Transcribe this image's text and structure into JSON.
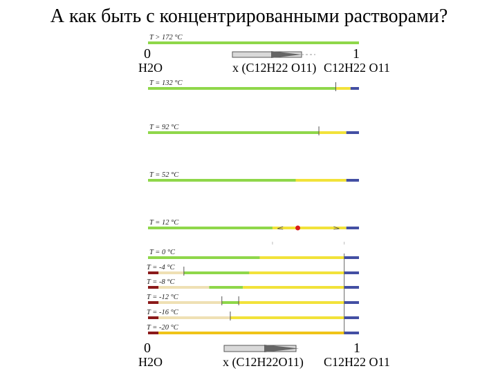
{
  "title": "А как быть с концентрированными растворами?",
  "axis_top": {
    "left_tick": "0",
    "right_tick": "1",
    "left_species": "H2O",
    "right_species": "C12H22 O11",
    "x_label": "x (C12H22 O11)"
  },
  "axis_bottom": {
    "left_tick": "0",
    "right_tick": "1",
    "left_species": "H2O",
    "right_species": "C12H22 O11",
    "x_label": "x (C12H22O11)"
  },
  "colors": {
    "liquid": "#8fd74a",
    "sucrose_solid": "#f2e23a",
    "sucrose_phase": "#434fa3",
    "ice": "#8b1a1a",
    "ice_mix": "#efe0b4",
    "eutectic": "#f0c419",
    "marker": "#d81b1b"
  },
  "chart_data": {
    "type": "phase-bars",
    "x_range": [
      0,
      1
    ],
    "rows": [
      {
        "label": "T > 172 °C",
        "segments": [
          {
            "phase": "liquid",
            "from": 0,
            "to": 1
          }
        ]
      },
      {
        "label": "T = 132 °C",
        "segments": [
          {
            "phase": "liquid",
            "from": 0,
            "to": 0.89
          },
          {
            "phase": "sucrose_solid",
            "from": 0.89,
            "to": 0.96
          },
          {
            "phase": "sucrose_phase",
            "from": 0.96,
            "to": 1
          }
        ],
        "ticks": [
          0.89
        ]
      },
      {
        "label": "T = 92 °C",
        "segments": [
          {
            "phase": "liquid",
            "from": 0,
            "to": 0.81
          },
          {
            "phase": "sucrose_solid",
            "from": 0.81,
            "to": 0.94
          },
          {
            "phase": "sucrose_phase",
            "from": 0.94,
            "to": 1
          }
        ],
        "ticks": [
          0.81
        ]
      },
      {
        "label": "T = 52 °C",
        "segments": [
          {
            "phase": "liquid",
            "from": 0,
            "to": 0.7
          },
          {
            "phase": "sucrose_solid",
            "from": 0.7,
            "to": 0.94
          },
          {
            "phase": "sucrose_phase",
            "from": 0.94,
            "to": 1
          }
        ]
      },
      {
        "label": "T = 12 °C",
        "segments": [
          {
            "phase": "liquid",
            "from": 0,
            "to": 0.59
          },
          {
            "phase": "sucrose_solid",
            "from": 0.59,
            "to": 0.94
          },
          {
            "phase": "sucrose_phase",
            "from": 0.94,
            "to": 1
          }
        ],
        "marker": 0.71
      },
      {
        "label": "T = 0 °C",
        "segments": [
          {
            "phase": "liquid",
            "from": 0,
            "to": 0.53
          },
          {
            "phase": "sucrose_solid",
            "from": 0.53,
            "to": 0.93
          },
          {
            "phase": "sucrose_phase",
            "from": 0.93,
            "to": 1
          }
        ]
      },
      {
        "label": "T = -4 °C",
        "segments": [
          {
            "phase": "ice",
            "from": 0,
            "to": 0.05
          },
          {
            "phase": "ice_mix",
            "from": 0.05,
            "to": 0.17
          },
          {
            "phase": "liquid",
            "from": 0.17,
            "to": 0.48
          },
          {
            "phase": "sucrose_solid",
            "from": 0.48,
            "to": 0.93
          },
          {
            "phase": "sucrose_phase",
            "from": 0.93,
            "to": 1
          }
        ],
        "ticks": [
          0.17
        ]
      },
      {
        "label": "T = -8 °C",
        "segments": [
          {
            "phase": "ice",
            "from": 0,
            "to": 0.05
          },
          {
            "phase": "ice_mix",
            "from": 0.05,
            "to": 0.29
          },
          {
            "phase": "liquid",
            "from": 0.29,
            "to": 0.45
          },
          {
            "phase": "sucrose_solid",
            "from": 0.45,
            "to": 0.93
          },
          {
            "phase": "sucrose_phase",
            "from": 0.93,
            "to": 1
          }
        ]
      },
      {
        "label": "T = -12 °C",
        "segments": [
          {
            "phase": "ice",
            "from": 0,
            "to": 0.05
          },
          {
            "phase": "ice_mix",
            "from": 0.05,
            "to": 0.35
          },
          {
            "phase": "liquid",
            "from": 0.35,
            "to": 0.43
          },
          {
            "phase": "sucrose_solid",
            "from": 0.43,
            "to": 0.93
          },
          {
            "phase": "sucrose_phase",
            "from": 0.93,
            "to": 1
          }
        ],
        "ticks": [
          0.35,
          0.43
        ]
      },
      {
        "label": "T = -16 °C",
        "segments": [
          {
            "phase": "ice",
            "from": 0,
            "to": 0.05
          },
          {
            "phase": "ice_mix",
            "from": 0.05,
            "to": 0.39
          },
          {
            "phase": "sucrose_solid",
            "from": 0.39,
            "to": 0.93
          },
          {
            "phase": "sucrose_phase",
            "from": 0.93,
            "to": 1
          }
        ],
        "ticks": [
          0.39
        ]
      },
      {
        "label": "T = -20 °C",
        "segments": [
          {
            "phase": "ice",
            "from": 0,
            "to": 0.05
          },
          {
            "phase": "eutectic",
            "from": 0.05,
            "to": 0.93
          },
          {
            "phase": "sucrose_phase",
            "from": 0.93,
            "to": 1
          }
        ]
      }
    ]
  }
}
